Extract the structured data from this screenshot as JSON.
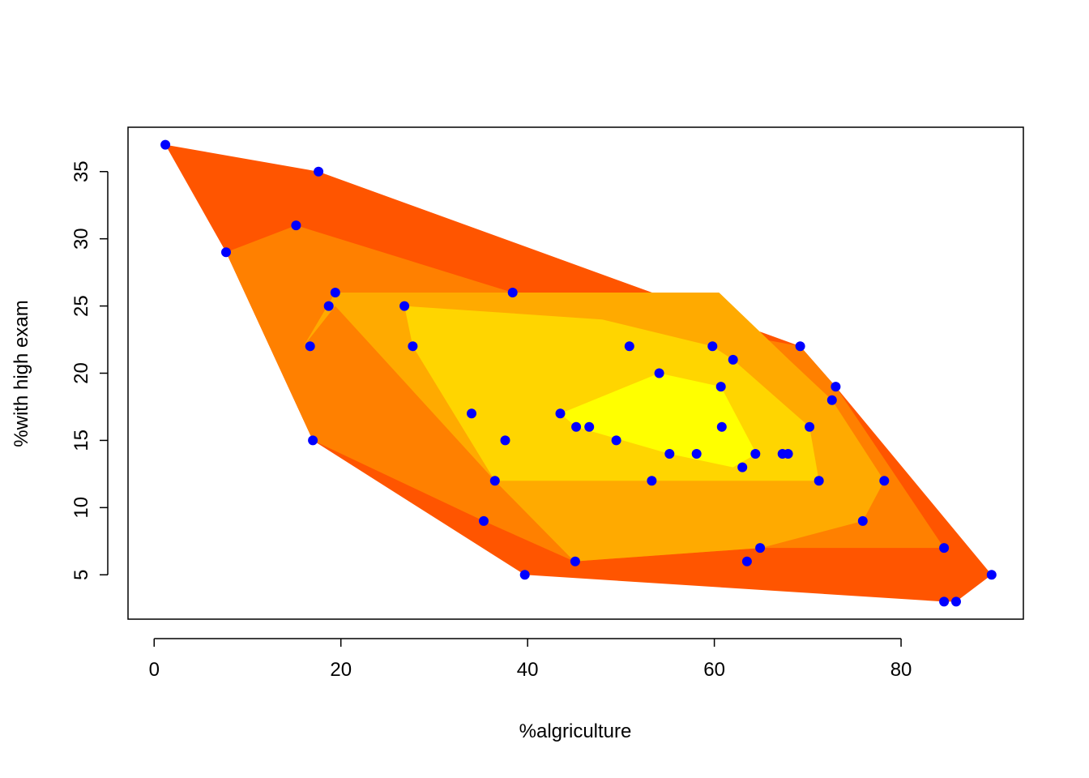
{
  "chart_data": {
    "type": "scatter",
    "title": "",
    "xlabel": "%algriculture",
    "ylabel": "%with high exam",
    "xlim": [
      -2.8,
      93.1
    ],
    "ylim": [
      1.7,
      38.3
    ],
    "x_ticks": [
      0,
      20,
      40,
      60,
      80
    ],
    "y_ticks": [
      5,
      10,
      15,
      20,
      25,
      30,
      35
    ],
    "grid": false,
    "legend": "none",
    "point_color": "#0000ff",
    "band_colors": [
      "#ff5500",
      "#ff8000",
      "#ffaa00",
      "#ffd500",
      "#ffff00"
    ],
    "bands": [
      [
        [
          1.2,
          37
        ],
        [
          17.6,
          35
        ],
        [
          69.2,
          22
        ],
        [
          73,
          19
        ],
        [
          89.7,
          5
        ],
        [
          85.9,
          3
        ],
        [
          84.6,
          3
        ],
        [
          39.7,
          5
        ],
        [
          17,
          15
        ],
        [
          7.7,
          29
        ]
      ],
      [
        [
          7.7,
          29
        ],
        [
          15.2,
          31
        ],
        [
          38.4,
          26
        ],
        [
          69.2,
          22
        ],
        [
          73,
          19
        ],
        [
          84.6,
          7
        ],
        [
          65,
          7
        ],
        [
          45,
          6
        ],
        [
          35.3,
          9
        ],
        [
          17,
          15
        ]
      ],
      [
        [
          16,
          22
        ],
        [
          19.4,
          26
        ],
        [
          60.5,
          26
        ],
        [
          68,
          21
        ],
        [
          72.6,
          18
        ],
        [
          78.2,
          12
        ],
        [
          75.9,
          9
        ],
        [
          65,
          7
        ],
        [
          45,
          6
        ],
        [
          36.5,
          12
        ],
        [
          19.4,
          25
        ]
      ],
      [
        [
          26.8,
          25
        ],
        [
          27.7,
          22
        ],
        [
          36.5,
          12
        ],
        [
          71.2,
          12
        ],
        [
          70.2,
          16
        ],
        [
          62,
          21
        ],
        [
          59.8,
          22
        ],
        [
          48,
          24
        ]
      ],
      [
        [
          43.5,
          17
        ],
        [
          54.1,
          20
        ],
        [
          60.7,
          19
        ],
        [
          64.5,
          14
        ],
        [
          62,
          13
        ],
        [
          55.2,
          14
        ],
        [
          45.2,
          16
        ]
      ]
    ],
    "points": [
      {
        "x": 1.2,
        "y": 37
      },
      {
        "x": 17.6,
        "y": 35
      },
      {
        "x": 15.2,
        "y": 31
      },
      {
        "x": 7.7,
        "y": 29
      },
      {
        "x": 19.4,
        "y": 26
      },
      {
        "x": 38.4,
        "y": 26
      },
      {
        "x": 18.7,
        "y": 25
      },
      {
        "x": 26.8,
        "y": 25
      },
      {
        "x": 16.7,
        "y": 22
      },
      {
        "x": 27.7,
        "y": 22
      },
      {
        "x": 50.9,
        "y": 22
      },
      {
        "x": 59.8,
        "y": 22
      },
      {
        "x": 69.2,
        "y": 22
      },
      {
        "x": 62.0,
        "y": 21
      },
      {
        "x": 54.1,
        "y": 20
      },
      {
        "x": 60.7,
        "y": 19
      },
      {
        "x": 73.0,
        "y": 19
      },
      {
        "x": 72.6,
        "y": 18
      },
      {
        "x": 34.0,
        "y": 17
      },
      {
        "x": 43.5,
        "y": 17
      },
      {
        "x": 45.2,
        "y": 16
      },
      {
        "x": 46.6,
        "y": 16
      },
      {
        "x": 60.8,
        "y": 16
      },
      {
        "x": 70.2,
        "y": 16
      },
      {
        "x": 17.0,
        "y": 15
      },
      {
        "x": 37.6,
        "y": 15
      },
      {
        "x": 49.5,
        "y": 15
      },
      {
        "x": 55.2,
        "y": 14
      },
      {
        "x": 58.1,
        "y": 14
      },
      {
        "x": 64.4,
        "y": 14
      },
      {
        "x": 67.3,
        "y": 14
      },
      {
        "x": 67.9,
        "y": 14
      },
      {
        "x": 63.0,
        "y": 13
      },
      {
        "x": 36.5,
        "y": 12
      },
      {
        "x": 53.3,
        "y": 12
      },
      {
        "x": 71.2,
        "y": 12
      },
      {
        "x": 78.2,
        "y": 12
      },
      {
        "x": 35.3,
        "y": 9
      },
      {
        "x": 75.9,
        "y": 9
      },
      {
        "x": 64.9,
        "y": 7
      },
      {
        "x": 84.6,
        "y": 7
      },
      {
        "x": 45.1,
        "y": 6
      },
      {
        "x": 63.5,
        "y": 6
      },
      {
        "x": 39.7,
        "y": 5
      },
      {
        "x": 89.7,
        "y": 5
      },
      {
        "x": 84.6,
        "y": 3
      },
      {
        "x": 85.9,
        "y": 3
      }
    ]
  }
}
